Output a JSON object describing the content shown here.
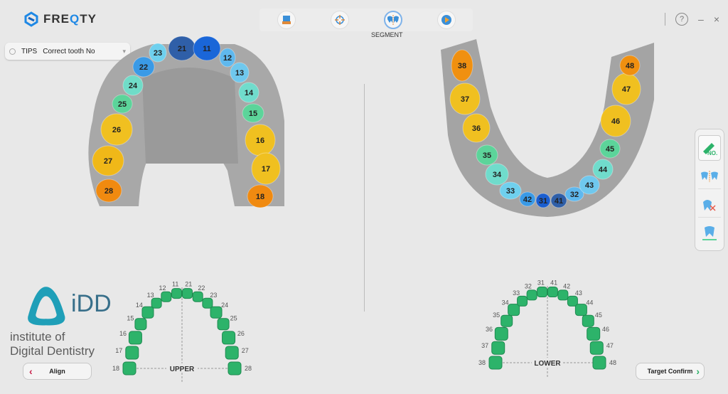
{
  "app": {
    "name_prefix": "FRE",
    "name_q": "Q",
    "name_suffix": "TY"
  },
  "toolbar": {
    "tools": [
      "scan-import",
      "align-target",
      "segment",
      "play"
    ],
    "active_label": "SEGMENT"
  },
  "window": {
    "help": "?",
    "minimize": "–",
    "close": "×"
  },
  "tips": {
    "label": "TIPS",
    "text": "Correct tooth No"
  },
  "upper_arch": [
    {
      "no": "21",
      "color": "#2f5fa8"
    },
    {
      "no": "11",
      "color": "#1a66d8"
    },
    {
      "no": "23",
      "color": "#6fd0ee"
    },
    {
      "no": "12",
      "color": "#5fb8ee"
    },
    {
      "no": "22",
      "color": "#3a9ae6"
    },
    {
      "no": "13",
      "color": "#6fc8ee"
    },
    {
      "no": "24",
      "color": "#70dcc8"
    },
    {
      "no": "14",
      "color": "#70dccc"
    },
    {
      "no": "25",
      "color": "#5cd49a"
    },
    {
      "no": "15",
      "color": "#5cd49a"
    },
    {
      "no": "26",
      "color": "#f0c020"
    },
    {
      "no": "16",
      "color": "#f0c020"
    },
    {
      "no": "27",
      "color": "#f0b818"
    },
    {
      "no": "17",
      "color": "#f0c020"
    },
    {
      "no": "28",
      "color": "#f08a10"
    },
    {
      "no": "18",
      "color": "#f08a10"
    }
  ],
  "lower_arch": [
    {
      "no": "38",
      "color": "#f09010"
    },
    {
      "no": "37",
      "color": "#f0c020"
    },
    {
      "no": "36",
      "color": "#f0c020"
    },
    {
      "no": "35",
      "color": "#5cd49a"
    },
    {
      "no": "34",
      "color": "#70dccc"
    },
    {
      "no": "33",
      "color": "#6fd0ee"
    },
    {
      "no": "42",
      "color": "#3a9ae6"
    },
    {
      "no": "31",
      "color": "#1a5ed0"
    },
    {
      "no": "41",
      "color": "#2f5fa8"
    },
    {
      "no": "32",
      "color": "#5fb8ee"
    },
    {
      "no": "43",
      "color": "#6fc8ee"
    },
    {
      "no": "44",
      "color": "#70dccc"
    },
    {
      "no": "45",
      "color": "#5cd49a"
    },
    {
      "no": "46",
      "color": "#f0c020"
    },
    {
      "no": "47",
      "color": "#f0c020"
    },
    {
      "no": "48",
      "color": "#f09010"
    }
  ],
  "upper_chart": {
    "label": "UPPER",
    "teeth": [
      "18",
      "17",
      "16",
      "15",
      "14",
      "13",
      "12",
      "11",
      "21",
      "22",
      "23",
      "24",
      "25",
      "26",
      "27",
      "28"
    ]
  },
  "lower_chart": {
    "label": "LOWER",
    "teeth": [
      "38",
      "37",
      "36",
      "35",
      "34",
      "33",
      "32",
      "31",
      "41",
      "42",
      "43",
      "44",
      "45",
      "46",
      "47",
      "48"
    ]
  },
  "chart_color": "#2db36a",
  "watermark": {
    "line1": "iDD",
    "line2": "institute of",
    "line3": "Digital Dentistry"
  },
  "side_tools": [
    "tooth-number-edit",
    "split-teeth",
    "delete-tooth",
    "tooth-base"
  ],
  "buttons": {
    "align": "Align",
    "target_confirm": "Target Confirm"
  }
}
